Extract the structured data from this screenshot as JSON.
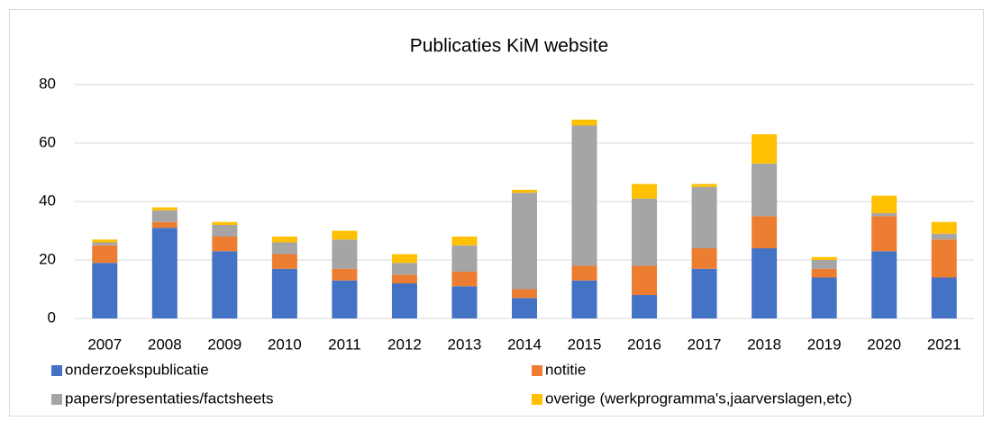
{
  "chart_data": {
    "type": "stacked_bar",
    "title": "Publicaties KiM website",
    "categories": [
      "2007",
      "2008",
      "2009",
      "2010",
      "2011",
      "2012",
      "2013",
      "2014",
      "2015",
      "2016",
      "2017",
      "2018",
      "2019",
      "2020",
      "2021"
    ],
    "series": [
      {
        "name": "onderzoekspublicatie",
        "color": "#4472c4",
        "values": [
          19,
          31,
          23,
          17,
          13,
          12,
          11,
          7,
          13,
          8,
          17,
          24,
          14,
          23,
          14
        ]
      },
      {
        "name": "notitie",
        "color": "#ed7d31",
        "values": [
          6,
          2,
          5,
          5,
          4,
          3,
          5,
          3,
          5,
          10,
          7,
          11,
          3,
          12,
          13
        ]
      },
      {
        "name": "papers/presentaties/factsheets",
        "color": "#a5a5a5",
        "values": [
          1,
          4,
          4,
          4,
          10,
          4,
          9,
          33,
          48,
          23,
          21,
          18,
          3,
          1,
          2
        ]
      },
      {
        "name": "overige (werkprogramma's,jaarverslagen,etc)",
        "color": "#ffc000",
        "values": [
          1,
          1,
          1,
          2,
          3,
          3,
          3,
          1,
          2,
          5,
          1,
          10,
          1,
          6,
          4
        ]
      }
    ],
    "ylim": [
      0,
      80
    ],
    "yticks": [
      0,
      20,
      40,
      60,
      80
    ],
    "grid": true,
    "legend": "bottom"
  }
}
